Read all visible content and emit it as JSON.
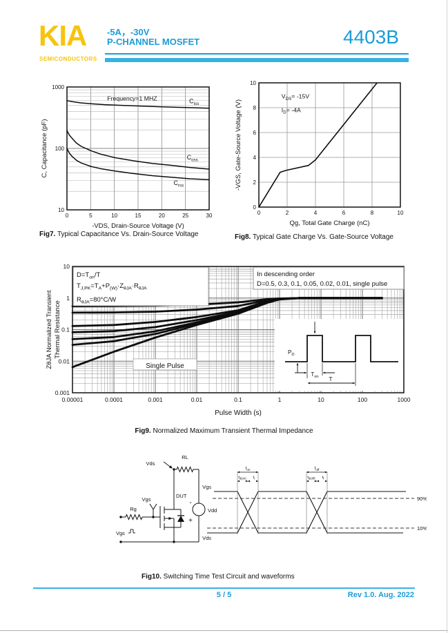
{
  "page": {
    "accent": "#1b9cd8",
    "accent_bar": "#35b2e5",
    "brand": "#f6c40e",
    "text": "#111111"
  },
  "header": {
    "logo": "KIA",
    "logo_sub": "SEMICONDUCTORS",
    "rating": "-5A，-30V",
    "device_type": "P-CHANNEL MOSFET",
    "part_number": "4403B"
  },
  "figures": {
    "fig7": {
      "caption_label": "Fig7.",
      "caption_text": " Typical Capacitance Vs. Drain-Source Voltage"
    },
    "fig8": {
      "caption_label": "Fig8.",
      "caption_text": " Typical Gate Charge Vs. Gate-Source Voltage"
    },
    "fig9": {
      "caption_label": "Fig9.",
      "caption_text": " Normalized Maximum Transient Thermal Impedance"
    },
    "fig10": {
      "caption_label": "Fig10.",
      "caption_text": " Switching Time Test Circuit and waveforms"
    }
  },
  "footer": {
    "page_indicator": "5 / 5",
    "revision": "Rev 1.0. Aug. 2022"
  },
  "chart_data": [
    {
      "id": "fig7",
      "type": "line",
      "xlabel": "-VDS, Drain-Source Voltage (V)",
      "ylabel": "C, Capacitance (pF)",
      "xscale": "linear",
      "yscale": "log",
      "xlim": [
        0,
        30
      ],
      "ylim": [
        10,
        1000
      ],
      "xticks": [
        0,
        5,
        10,
        15,
        20,
        25,
        30
      ],
      "yticks": [
        10,
        100,
        1000
      ],
      "grid": true,
      "annotations": [
        {
          "text": "Frequency=1 MHZ",
          "x": 8.5,
          "y": 600
        }
      ],
      "series": [
        {
          "name": "Ciss",
          "label": "C_{iss}",
          "label_pos": {
            "x": 25.8,
            "y": 545
          },
          "points": [
            [
              0,
              600
            ],
            [
              1,
              580
            ],
            [
              3,
              550
            ],
            [
              5,
              535
            ],
            [
              8,
              515
            ],
            [
              12,
              500
            ],
            [
              16,
              487
            ],
            [
              20,
              476
            ],
            [
              25,
              463
            ],
            [
              30,
              452
            ]
          ]
        },
        {
          "name": "Coss",
          "label": "C_{oss}",
          "label_pos": {
            "x": 25.3,
            "y": 66
          },
          "points": [
            [
              0,
              195
            ],
            [
              0.5,
              165
            ],
            [
              1,
              148
            ],
            [
              2,
              122
            ],
            [
              3,
              108
            ],
            [
              5,
              92
            ],
            [
              7,
              81
            ],
            [
              10,
              71
            ],
            [
              14,
              63
            ],
            [
              18,
              57
            ],
            [
              22,
              53
            ],
            [
              26,
              49
            ],
            [
              30,
              46
            ]
          ]
        },
        {
          "name": "Crss",
          "label": "C_{rss}",
          "label_pos": {
            "x": 22.5,
            "y": 25.5
          },
          "points": [
            [
              0,
              100
            ],
            [
              0.5,
              84
            ],
            [
              1,
              75
            ],
            [
              2,
              64
            ],
            [
              3,
              58
            ],
            [
              5,
              51
            ],
            [
              7,
              47
            ],
            [
              10,
              43
            ],
            [
              14,
              39
            ],
            [
              18,
              36
            ],
            [
              22,
              34
            ],
            [
              26,
              32
            ],
            [
              30,
              31
            ]
          ]
        }
      ]
    },
    {
      "id": "fig8",
      "type": "line",
      "xlabel": "Qg, Total Gate Charge (nC)",
      "ylabel": "-VGS, Gate-Source Voltage (V)",
      "xscale": "linear",
      "yscale": "linear",
      "xlim": [
        0,
        10
      ],
      "ylim": [
        0,
        10
      ],
      "xticks": [
        0,
        2,
        4,
        6,
        8,
        10
      ],
      "yticks": [
        0,
        2,
        4,
        6,
        8,
        10
      ],
      "grid": true,
      "annotations": [
        {
          "text": "V_{DS}= -15V",
          "x": 1.6,
          "y": 8.75
        },
        {
          "text": "I_{D}= -4A",
          "x": 1.6,
          "y": 7.65
        }
      ],
      "series": [
        {
          "name": "gate-charge",
          "points": [
            [
              0,
              0
            ],
            [
              1.5,
              2.8
            ],
            [
              1.9,
              2.95
            ],
            [
              3.5,
              3.35
            ],
            [
              4.0,
              3.8
            ],
            [
              8.35,
              10
            ]
          ]
        }
      ]
    },
    {
      "id": "fig9",
      "type": "line",
      "xlabel": "Pulse Width (s)",
      "ylabel_lines": [
        "ZθJA Normalized Transient",
        "Thermal Resistance"
      ],
      "xscale": "log",
      "yscale": "log",
      "xlim": [
        1e-05,
        1000
      ],
      "ylim": [
        0.001,
        10
      ],
      "xticks": [
        1e-05,
        0.0001,
        0.001,
        0.01,
        0.1,
        1,
        10,
        100,
        1000
      ],
      "xtick_labels": [
        "0.00001",
        "0.0001",
        "0.001",
        "0.01",
        "0.1",
        "1",
        "10",
        "100",
        "1000"
      ],
      "yticks": [
        0.001,
        0.01,
        0.1,
        1,
        10
      ],
      "ytick_labels": [
        "0.001",
        "0.01",
        "0.1",
        "1",
        "10"
      ],
      "grid": true,
      "legend_box": [
        "D=T_{on}/T",
        "T_{J,PK}=T_{A}+P_{(W)}·Z_{θJA}·R_{θJA}",
        "R_{θJA}=80°C/W"
      ],
      "order_note": [
        "In descending order",
        "D=0.5, 0.3, 0.1, 0.05, 0.02, 0.01, single pulse"
      ],
      "single_pulse_label": "Single Pulse",
      "inset_labels": {
        "amplitude": "P_{D}",
        "on_time": "T_{on}",
        "period": "T"
      },
      "series": [
        {
          "name": "D=0.5",
          "points": [
            [
              1e-05,
              0.55
            ],
            [
              0.0001,
              0.56
            ],
            [
              0.001,
              0.575
            ],
            [
              0.01,
              0.62
            ],
            [
              0.1,
              0.73
            ],
            [
              0.5,
              0.92
            ],
            [
              1,
              0.97
            ],
            [
              3,
              1.0
            ],
            [
              300,
              1.0
            ]
          ]
        },
        {
          "name": "D=0.3",
          "points": [
            [
              1e-05,
              0.345
            ],
            [
              0.0001,
              0.35
            ],
            [
              0.001,
              0.37
            ],
            [
              0.01,
              0.43
            ],
            [
              0.1,
              0.56
            ],
            [
              0.5,
              0.85
            ],
            [
              1,
              0.95
            ],
            [
              3,
              1.0
            ],
            [
              300,
              1.0
            ]
          ]
        },
        {
          "name": "D=0.1",
          "points": [
            [
              1e-05,
              0.13
            ],
            [
              0.0001,
              0.14
            ],
            [
              0.001,
              0.175
            ],
            [
              0.01,
              0.25
            ],
            [
              0.1,
              0.41
            ],
            [
              0.5,
              0.8
            ],
            [
              1,
              0.93
            ],
            [
              3,
              1.0
            ],
            [
              300,
              1.0
            ]
          ]
        },
        {
          "name": "D=0.05",
          "points": [
            [
              1e-05,
              0.082
            ],
            [
              0.0001,
              0.09
            ],
            [
              0.001,
              0.12
            ],
            [
              0.01,
              0.2
            ],
            [
              0.1,
              0.37
            ],
            [
              0.5,
              0.78
            ],
            [
              1,
              0.92
            ],
            [
              3,
              1.0
            ],
            [
              300,
              1.0
            ]
          ]
        },
        {
          "name": "D=0.02",
          "points": [
            [
              1e-05,
              0.05
            ],
            [
              0.0001,
              0.058
            ],
            [
              0.001,
              0.088
            ],
            [
              0.01,
              0.17
            ],
            [
              0.1,
              0.35
            ],
            [
              0.5,
              0.77
            ],
            [
              1,
              0.92
            ],
            [
              3,
              1.0
            ],
            [
              300,
              1.0
            ]
          ]
        },
        {
          "name": "D=0.01",
          "points": [
            [
              1e-05,
              0.033
            ],
            [
              0.0001,
              0.043
            ],
            [
              0.001,
              0.073
            ],
            [
              0.01,
              0.155
            ],
            [
              0.1,
              0.34
            ],
            [
              0.5,
              0.76
            ],
            [
              1,
              0.92
            ],
            [
              3,
              1.0
            ],
            [
              300,
              1.0
            ]
          ]
        },
        {
          "name": "single pulse",
          "points": [
            [
              1e-05,
              0.0065
            ],
            [
              0.0001,
              0.02
            ],
            [
              0.001,
              0.056
            ],
            [
              0.01,
              0.14
            ],
            [
              0.1,
              0.32
            ],
            [
              0.5,
              0.7
            ],
            [
              1,
              0.9
            ],
            [
              3,
              1.0
            ],
            [
              300,
              1.0
            ]
          ]
        }
      ]
    }
  ],
  "circuit": {
    "rl": "RL",
    "vds": "Vds",
    "vgs_probe": "Vgs",
    "rg": "Rg",
    "dut": "DUT",
    "vdd": "Vdd",
    "minus": "-",
    "plus": "+",
    "vgs_source": "Vgs",
    "wave_vgs": "Vgs",
    "wave_vds": "Vds",
    "p90": "90%",
    "p10": "10%",
    "t_on": "t_{on}",
    "t_d_on": "t_{d(on)}",
    "t_r": "t_{r}",
    "t_off": "t_{off}",
    "t_d_off": "t_{d(off)}",
    "t_f": "t_{f}"
  }
}
